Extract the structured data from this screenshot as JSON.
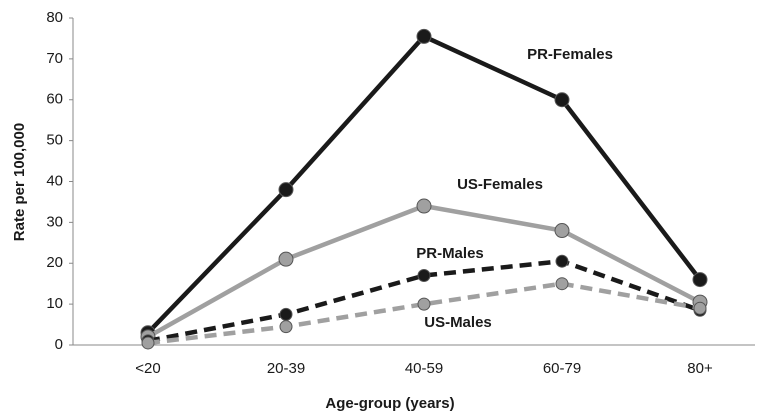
{
  "chart_data": {
    "type": "line",
    "x_label": "Age-group (years)",
    "y_label": "Rate per 100,000",
    "categories": [
      "<20",
      "20-39",
      "40-59",
      "60-79",
      "80+"
    ],
    "series": [
      {
        "name": "PR-Females",
        "color": "#1a1a1a",
        "dashed": false,
        "values": [
          3,
          38,
          75.5,
          60,
          16
        ]
      },
      {
        "name": "US-Females",
        "color": "#a0a0a0",
        "dashed": false,
        "values": [
          2,
          21,
          34,
          28,
          10.5
        ]
      },
      {
        "name": "PR-Males",
        "color": "#1a1a1a",
        "dashed": true,
        "values": [
          1,
          7.5,
          17,
          20.5,
          8.5
        ]
      },
      {
        "name": "US-Males",
        "color": "#a0a0a0",
        "dashed": true,
        "values": [
          0.5,
          4.5,
          10,
          15,
          9
        ]
      }
    ],
    "ylim": [
      0,
      80
    ],
    "yticks": [
      0,
      10,
      20,
      30,
      40,
      50,
      60,
      70,
      80
    ],
    "grid": false
  }
}
